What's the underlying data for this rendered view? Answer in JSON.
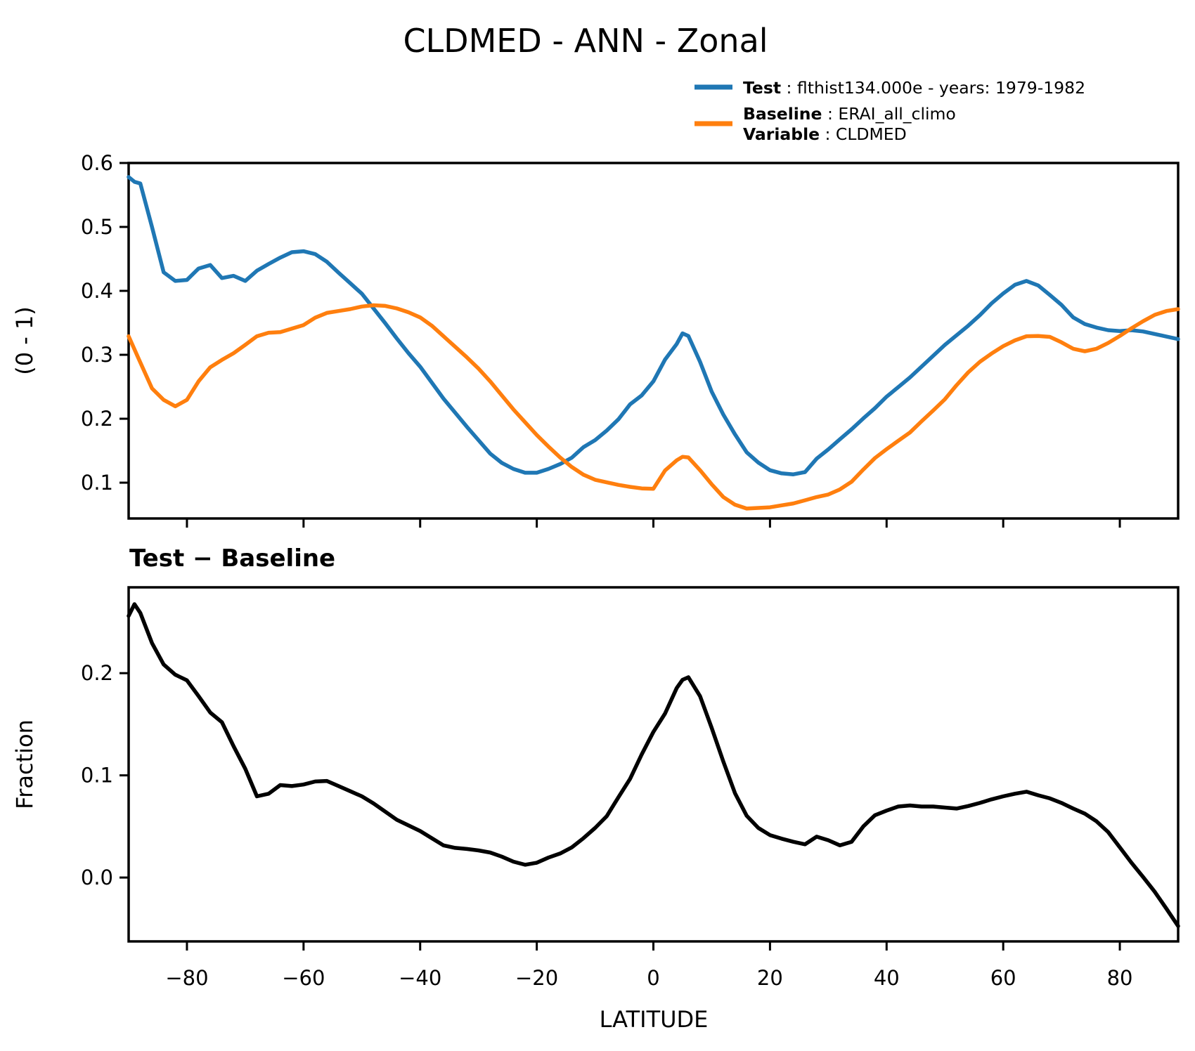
{
  "title": "CLDMED - ANN - Zonal",
  "subtitle": "Test − Baseline",
  "legend": {
    "test_label": "Test",
    "test_rest": " : flthist134.000e - years: 1979-1982",
    "baseline_label": "Baseline",
    "baseline_rest": " : ERAI_all_climo",
    "variable_label": "Variable",
    "variable_rest": " : CLDMED"
  },
  "colors": {
    "test": "#1f77b4",
    "baseline": "#ff7f0e",
    "diff": "#000000"
  },
  "chart_data": [
    {
      "type": "line",
      "title": "",
      "xlabel": "",
      "ylabel": "(0 - 1)",
      "xlim": [
        -90,
        90
      ],
      "ylim": [
        0.044,
        0.6
      ],
      "xticks": [
        -80,
        -60,
        -40,
        -20,
        0,
        20,
        40,
        60,
        80
      ],
      "yticks": [
        0.1,
        0.2,
        0.3,
        0.4,
        0.5,
        0.6
      ],
      "grid": false,
      "legend_position": "upper right outside",
      "x": [
        -90,
        -89,
        -88,
        -86,
        -84,
        -82,
        -80,
        -78,
        -76,
        -74,
        -72,
        -70,
        -68,
        -66,
        -64,
        -62,
        -60,
        -58,
        -56,
        -54,
        -52,
        -50,
        -48,
        -46,
        -44,
        -42,
        -40,
        -38,
        -36,
        -34,
        -32,
        -30,
        -28,
        -26,
        -24,
        -22,
        -20,
        -18,
        -16,
        -14,
        -12,
        -10,
        -8,
        -6,
        -4,
        -2,
        0,
        2,
        4,
        5,
        6,
        8,
        10,
        12,
        14,
        16,
        18,
        20,
        22,
        24,
        26,
        28,
        30,
        32,
        34,
        36,
        38,
        40,
        42,
        44,
        46,
        48,
        50,
        52,
        54,
        56,
        58,
        60,
        62,
        64,
        66,
        68,
        70,
        72,
        74,
        76,
        78,
        80,
        82,
        84,
        86,
        88,
        90
      ],
      "series": [
        {
          "name": "Test",
          "values": [
            0.578,
            0.5705,
            0.568,
            0.5,
            0.429,
            0.4155,
            0.417,
            0.435,
            0.4405,
            0.42,
            0.4235,
            0.4155,
            0.4315,
            0.442,
            0.452,
            0.4605,
            0.462,
            0.4575,
            0.4455,
            0.4285,
            0.412,
            0.3955,
            0.3725,
            0.3495,
            0.3255,
            0.3025,
            0.2815,
            0.2565,
            0.2315,
            0.2095,
            0.1875,
            0.1665,
            0.1455,
            0.131,
            0.1215,
            0.1155,
            0.1155,
            0.1215,
            0.129,
            0.139,
            0.1555,
            0.1665,
            0.1815,
            0.199,
            0.2225,
            0.2365,
            0.2585,
            0.2925,
            0.317,
            0.3335,
            0.3295,
            0.289,
            0.2425,
            0.2065,
            0.1755,
            0.1475,
            0.1315,
            0.1195,
            0.1145,
            0.113,
            0.1165,
            0.1375,
            0.152,
            0.168,
            0.1835,
            0.2005,
            0.2165,
            0.2345,
            0.2495,
            0.2645,
            0.2815,
            0.2985,
            0.3155,
            0.3305,
            0.3455,
            0.362,
            0.3805,
            0.396,
            0.4095,
            0.4155,
            0.4085,
            0.3935,
            0.378,
            0.3585,
            0.348,
            0.3425,
            0.3385,
            0.337,
            0.3385,
            0.3365,
            0.3325,
            0.3285,
            0.3245
          ]
        },
        {
          "name": "Baseline",
          "values": [
            0.329,
            0.3085,
            0.288,
            0.2475,
            0.2295,
            0.2195,
            0.2295,
            0.2585,
            0.2805,
            0.292,
            0.3025,
            0.3155,
            0.329,
            0.3345,
            0.3355,
            0.341,
            0.3465,
            0.358,
            0.3655,
            0.3685,
            0.3715,
            0.3755,
            0.3775,
            0.3765,
            0.3725,
            0.3665,
            0.3585,
            0.3455,
            0.329,
            0.3125,
            0.2961,
            0.2785,
            0.2585,
            0.2365,
            0.2145,
            0.1945,
            0.1745,
            0.1565,
            0.1395,
            0.1245,
            0.1125,
            0.1045,
            0.1005,
            0.0965,
            0.0935,
            0.091,
            0.0905,
            0.119,
            0.135,
            0.1405,
            0.1395,
            0.1195,
            0.0975,
            0.0775,
            0.0655,
            0.0595,
            0.0605,
            0.0615,
            0.0645,
            0.0675,
            0.0725,
            0.0775,
            0.0815,
            0.0895,
            0.1015,
            0.1205,
            0.1385,
            0.1525,
            0.1655,
            0.1785,
            0.196,
            0.213,
            0.2305,
            0.2525,
            0.2725,
            0.289,
            0.302,
            0.3135,
            0.3225,
            0.329,
            0.3295,
            0.328,
            0.3195,
            0.3095,
            0.3055,
            0.3095,
            0.3185,
            0.3295,
            0.3415,
            0.3525,
            0.3625,
            0.3685,
            0.3715
          ]
        }
      ]
    },
    {
      "type": "line",
      "title": "Test − Baseline",
      "xlabel": "LATITUDE",
      "ylabel": "Fraction",
      "xlim": [
        -90,
        90
      ],
      "ylim": [
        -0.0625,
        0.284
      ],
      "xticks": [
        -80,
        -60,
        -40,
        -20,
        0,
        20,
        40,
        60,
        80
      ],
      "yticks": [
        0.0,
        0.1,
        0.2
      ],
      "grid": false,
      "x": [
        -90,
        -89,
        -88,
        -86,
        -84,
        -82,
        -80,
        -78,
        -76,
        -74,
        -72,
        -70,
        -68,
        -66,
        -64,
        -62,
        -60,
        -58,
        -56,
        -54,
        -52,
        -50,
        -48,
        -46,
        -44,
        -42,
        -40,
        -38,
        -36,
        -34,
        -32,
        -30,
        -28,
        -26,
        -24,
        -22,
        -20,
        -18,
        -16,
        -14,
        -12,
        -10,
        -8,
        -6,
        -4,
        -2,
        0,
        2,
        4,
        5,
        6,
        8,
        10,
        12,
        14,
        16,
        18,
        20,
        22,
        24,
        26,
        28,
        30,
        32,
        34,
        36,
        38,
        40,
        42,
        44,
        46,
        48,
        50,
        52,
        54,
        56,
        58,
        60,
        62,
        64,
        66,
        68,
        70,
        72,
        74,
        76,
        78,
        80,
        82,
        84,
        86,
        88,
        90
      ],
      "series": [
        {
          "name": "Test − Baseline",
          "values": [
            0.256,
            0.2675,
            0.259,
            0.2295,
            0.2085,
            0.1985,
            0.193,
            0.1775,
            0.1615,
            0.152,
            0.1285,
            0.1065,
            0.0795,
            0.082,
            0.0905,
            0.0895,
            0.091,
            0.094,
            0.0945,
            0.0895,
            0.0845,
            0.0795,
            0.0725,
            0.0645,
            0.0565,
            0.051,
            0.0455,
            0.0385,
            0.0315,
            0.029,
            0.028,
            0.0265,
            0.0245,
            0.0205,
            0.0155,
            0.0125,
            0.0145,
            0.0195,
            0.0235,
            0.0295,
            0.0385,
            0.0485,
            0.06,
            0.0785,
            0.0965,
            0.1205,
            0.1425,
            0.1605,
            0.1855,
            0.1935,
            0.196,
            0.1775,
            0.1465,
            0.1135,
            0.0825,
            0.0605,
            0.0485,
            0.0415,
            0.038,
            0.035,
            0.0325,
            0.04,
            0.0365,
            0.0315,
            0.035,
            0.05,
            0.061,
            0.0655,
            0.0695,
            0.0705,
            0.0695,
            0.0695,
            0.0685,
            0.0675,
            0.07,
            0.073,
            0.0765,
            0.0795,
            0.082,
            0.084,
            0.0805,
            0.0775,
            0.073,
            0.0675,
            0.0625,
            0.055,
            0.0445,
            0.0295,
            0.0145,
            0.0005,
            -0.014,
            -0.0305,
            -0.0475
          ]
        }
      ]
    }
  ]
}
